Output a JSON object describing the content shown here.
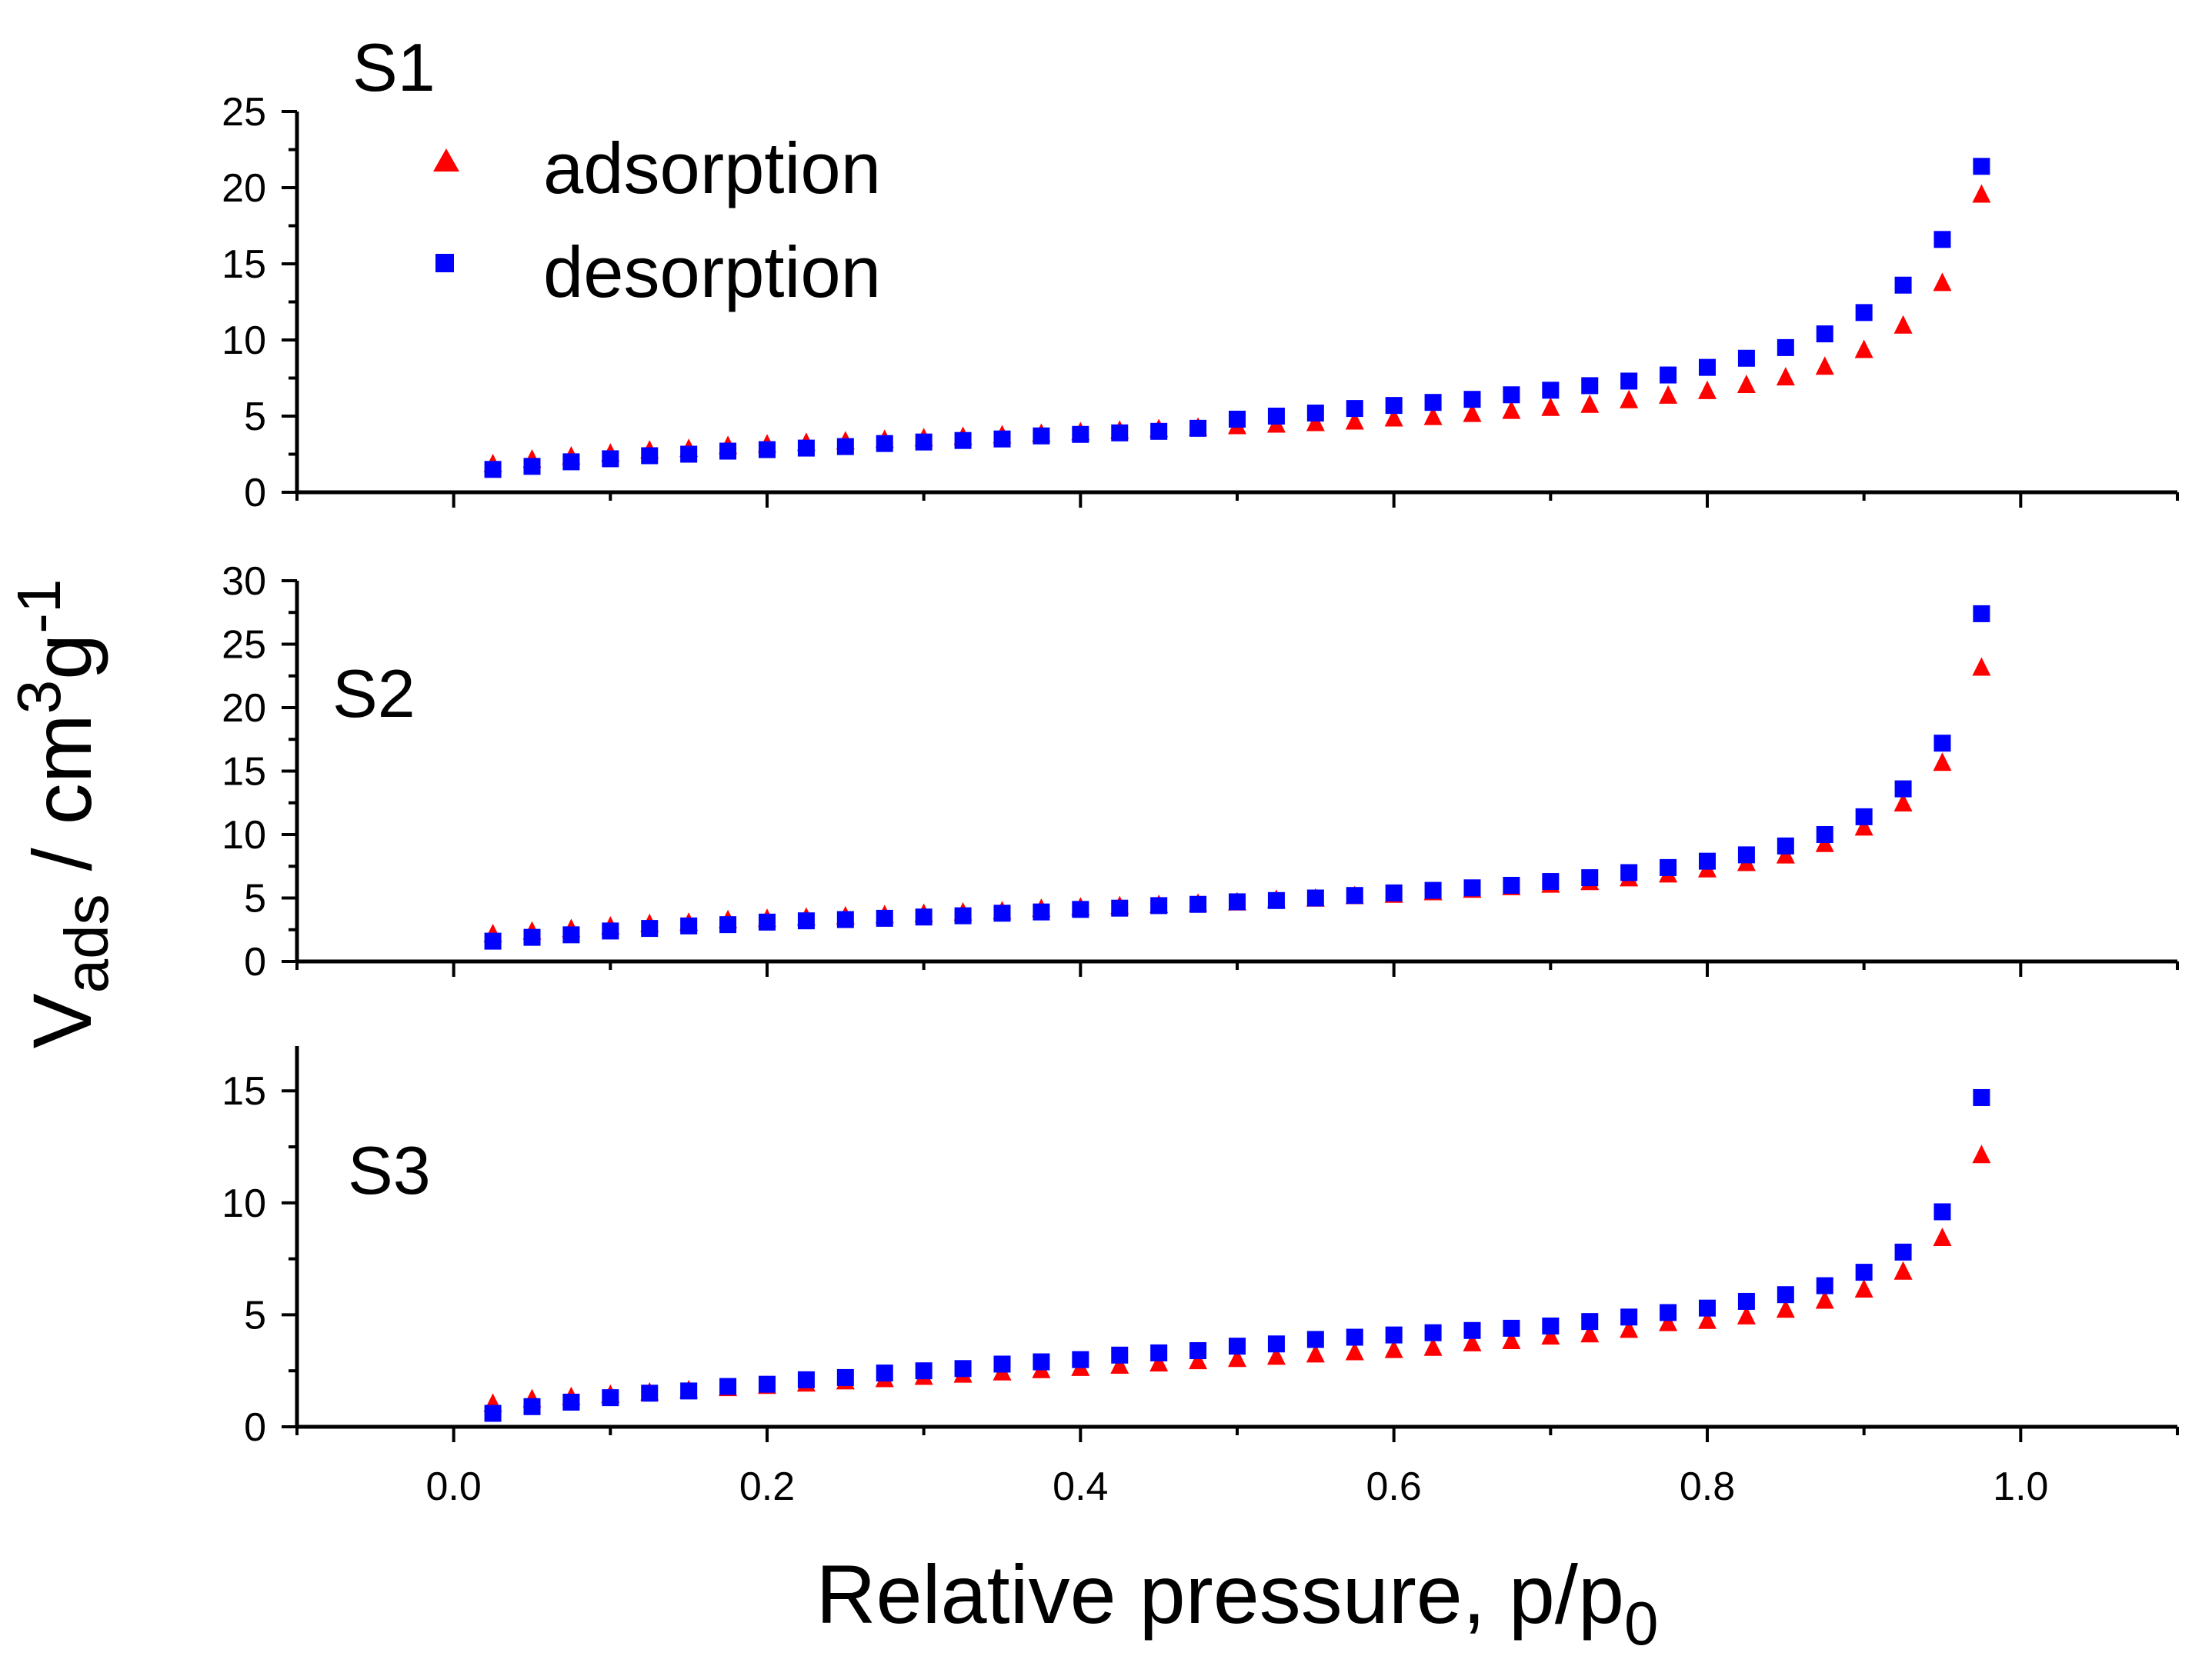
{
  "chart_data": {
    "type": "scatter",
    "title": "",
    "xlabel": "Relative pressure, p/p",
    "xlabel_subscript": "0",
    "ylabel_main": "V",
    "ylabel_sub": "ads",
    "ylabel_unit": " / cm",
    "ylabel_sup1": "3",
    "ylabel_mid": "g",
    "ylabel_sup2": "-1",
    "xlim": [
      -0.1,
      1.1
    ],
    "xticks": [
      0.0,
      0.2,
      0.4,
      0.6,
      0.8,
      1.0
    ],
    "xtick_labels": [
      "0.0",
      "0.2",
      "0.4",
      "0.6",
      "0.8",
      "1.0"
    ],
    "x": [
      0.025,
      0.05,
      0.075,
      0.1,
      0.125,
      0.15,
      0.175,
      0.2,
      0.225,
      0.25,
      0.275,
      0.3,
      0.325,
      0.35,
      0.375,
      0.4,
      0.425,
      0.45,
      0.475,
      0.5,
      0.525,
      0.55,
      0.575,
      0.6,
      0.625,
      0.65,
      0.675,
      0.7,
      0.725,
      0.75,
      0.775,
      0.8,
      0.825,
      0.85,
      0.875,
      0.9,
      0.925,
      0.95,
      0.975
    ],
    "legend": {
      "placement": "top-left",
      "entries": [
        {
          "label": "adsorption",
          "color": "#ff0000",
          "marker": "triangle"
        },
        {
          "label": "desorption",
          "color": "#0000ff",
          "marker": "square"
        }
      ]
    },
    "panels": [
      {
        "label": "S1",
        "ylim": [
          0,
          25
        ],
        "yticks": [
          0,
          5,
          10,
          15,
          20,
          25
        ],
        "ytick_labels": [
          "0",
          "5",
          "10",
          "15",
          "20",
          "25"
        ],
        "series": [
          {
            "name": "adsorption",
            "color": "#ff0000",
            "marker": "triangle",
            "values": [
              1.8,
              2.1,
              2.3,
              2.5,
              2.7,
              2.8,
              3.0,
              3.1,
              3.2,
              3.3,
              3.4,
              3.5,
              3.6,
              3.7,
              3.8,
              3.9,
              4.0,
              4.1,
              4.2,
              4.3,
              4.4,
              4.5,
              4.6,
              4.8,
              4.9,
              5.1,
              5.3,
              5.5,
              5.7,
              6.0,
              6.3,
              6.6,
              7.0,
              7.5,
              8.2,
              9.3,
              10.9,
              13.7,
              19.5
            ]
          },
          {
            "name": "desorption",
            "color": "#0000ff",
            "marker": "square",
            "values": [
              1.5,
              1.7,
              2.0,
              2.2,
              2.4,
              2.5,
              2.7,
              2.8,
              2.9,
              3.0,
              3.2,
              3.3,
              3.4,
              3.5,
              3.7,
              3.8,
              3.9,
              4.0,
              4.2,
              4.8,
              5.0,
              5.2,
              5.5,
              5.7,
              5.9,
              6.1,
              6.4,
              6.7,
              7.0,
              7.3,
              7.7,
              8.2,
              8.8,
              9.5,
              10.4,
              11.8,
              13.6,
              16.6,
              21.4
            ]
          }
        ]
      },
      {
        "label": "S2",
        "ylim": [
          0,
          30
        ],
        "yticks": [
          0,
          5,
          10,
          15,
          20,
          25,
          30
        ],
        "ytick_labels": [
          "0",
          "5",
          "10",
          "15",
          "20",
          "25",
          "30"
        ],
        "series": [
          {
            "name": "adsorption",
            "color": "#ff0000",
            "marker": "triangle",
            "values": [
              2.1,
              2.3,
              2.5,
              2.7,
              2.9,
              3.0,
              3.2,
              3.3,
              3.4,
              3.5,
              3.6,
              3.7,
              3.8,
              3.9,
              4.1,
              4.2,
              4.3,
              4.4,
              4.5,
              4.6,
              4.8,
              4.9,
              5.1,
              5.2,
              5.4,
              5.6,
              5.8,
              6.0,
              6.2,
              6.5,
              6.8,
              7.2,
              7.7,
              8.3,
              9.2,
              10.5,
              12.4,
              15.6,
              23.1
            ]
          },
          {
            "name": "desorption",
            "color": "#0000ff",
            "marker": "square",
            "values": [
              1.6,
              1.9,
              2.1,
              2.4,
              2.6,
              2.8,
              2.9,
              3.1,
              3.2,
              3.3,
              3.4,
              3.5,
              3.6,
              3.8,
              3.9,
              4.1,
              4.2,
              4.4,
              4.5,
              4.7,
              4.8,
              5.0,
              5.2,
              5.4,
              5.6,
              5.8,
              6.0,
              6.3,
              6.6,
              7.0,
              7.4,
              7.9,
              8.4,
              9.1,
              10.0,
              11.4,
              13.6,
              17.2,
              27.4
            ]
          }
        ]
      },
      {
        "label": "S3",
        "ylim": [
          0,
          17
        ],
        "yticks": [
          0,
          5,
          10,
          15
        ],
        "ytick_labels": [
          "0",
          "5",
          "10",
          "15"
        ],
        "series": [
          {
            "name": "adsorption",
            "color": "#ff0000",
            "marker": "triangle",
            "values": [
              1.0,
              1.2,
              1.3,
              1.4,
              1.5,
              1.6,
              1.7,
              1.8,
              1.9,
              2.0,
              2.1,
              2.2,
              2.3,
              2.4,
              2.5,
              2.6,
              2.7,
              2.8,
              2.9,
              3.0,
              3.1,
              3.2,
              3.3,
              3.4,
              3.5,
              3.7,
              3.8,
              4.0,
              4.1,
              4.3,
              4.6,
              4.7,
              4.9,
              5.2,
              5.6,
              6.1,
              6.9,
              8.4,
              12.1
            ]
          },
          {
            "name": "desorption",
            "color": "#0000ff",
            "marker": "square",
            "values": [
              0.6,
              0.9,
              1.1,
              1.3,
              1.5,
              1.6,
              1.8,
              1.9,
              2.1,
              2.2,
              2.4,
              2.5,
              2.6,
              2.8,
              2.9,
              3.0,
              3.2,
              3.3,
              3.4,
              3.6,
              3.7,
              3.9,
              4.0,
              4.1,
              4.2,
              4.3,
              4.4,
              4.5,
              4.7,
              4.9,
              5.1,
              5.3,
              5.6,
              5.9,
              6.3,
              6.9,
              7.8,
              9.6,
              14.7
            ]
          }
        ]
      }
    ]
  }
}
